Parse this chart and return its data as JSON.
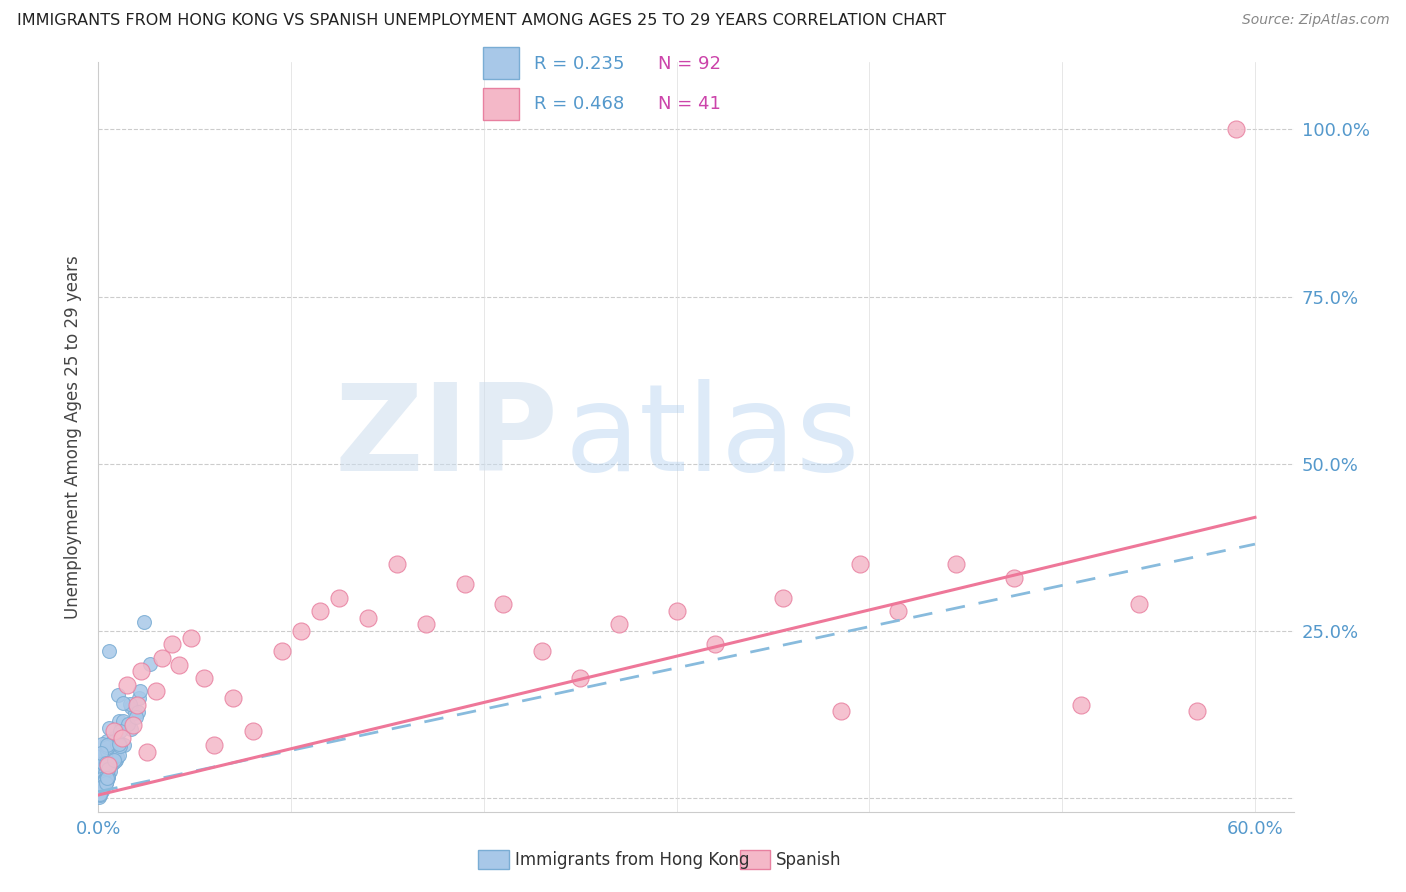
{
  "title": "IMMIGRANTS FROM HONG KONG VS SPANISH UNEMPLOYMENT AMONG AGES 25 TO 29 YEARS CORRELATION CHART",
  "source": "Source: ZipAtlas.com",
  "ylabel_label": "Unemployment Among Ages 25 to 29 years",
  "legend_blue_r": "R = 0.235",
  "legend_blue_n": "N = 92",
  "legend_pink_r": "R = 0.468",
  "legend_pink_n": "N = 41",
  "color_blue": "#a8c8e8",
  "color_blue_edge": "#7aadd4",
  "color_pink": "#f4b8c8",
  "color_pink_edge": "#e880a0",
  "color_blue_line": "#88bbdd",
  "color_pink_line": "#ee7799",
  "color_axis_label": "#5599cc",
  "watermark_zip": "ZIP",
  "watermark_atlas": "atlas",
  "xlim": [
    0.0,
    0.62
  ],
  "ylim": [
    -0.02,
    1.1
  ],
  "xtick_positions": [
    0.0,
    0.1,
    0.2,
    0.3,
    0.4,
    0.5,
    0.6
  ],
  "ytick_positions": [
    0.0,
    0.25,
    0.5,
    0.75,
    1.0
  ],
  "ytick_labels": [
    "",
    "25.0%",
    "50.0%",
    "75.0%",
    "100.0%"
  ],
  "blue_trend_x0": 0.0,
  "blue_trend_y0": 0.01,
  "blue_trend_x1": 0.6,
  "blue_trend_y1": 0.38,
  "pink_trend_x0": 0.0,
  "pink_trend_y0": 0.005,
  "pink_trend_x1": 0.6,
  "pink_trend_y1": 0.42
}
